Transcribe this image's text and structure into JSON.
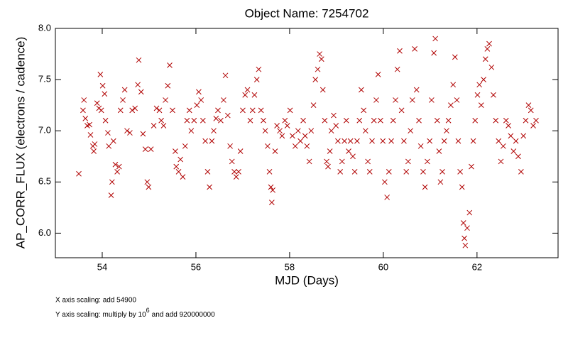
{
  "chart_data": {
    "type": "scatter",
    "title": "Object Name:  7254702",
    "xlabel": "MJD (Days)",
    "ylabel": "AP_CORR_FLUX (electrons / cadence)",
    "notes": [
      "X axis scaling: add 54900",
      "Y axis scaling: multiply by 10",
      "6",
      "and add 920000000"
    ],
    "color": "#b00000",
    "xlim": [
      53,
      63.73
    ],
    "ylim": [
      5.76,
      8.0
    ],
    "xticks": [
      54,
      56,
      58,
      60,
      62
    ],
    "yticks": [
      {
        "value": 6,
        "label": "6.0"
      },
      6.5,
      {
        "value": 7,
        "label": "7.0"
      },
      7.5,
      {
        "value": 8,
        "label": "8.0"
      }
    ],
    "x": [
      53.5,
      53.59,
      53.61,
      53.64,
      53.68,
      53.73,
      53.75,
      53.8,
      53.82,
      53.84,
      53.89,
      53.93,
      53.96,
      53.98,
      54.01,
      54.05,
      54.07,
      54.12,
      54.14,
      54.19,
      54.21,
      54.24,
      54.28,
      54.32,
      54.36,
      54.39,
      54.44,
      54.48,
      54.53,
      54.59,
      54.64,
      54.7,
      54.76,
      54.78,
      54.83,
      54.87,
      54.92,
      54.96,
      54.99,
      55.04,
      55.1,
      55.16,
      55.22,
      55.26,
      55.31,
      55.35,
      55.4,
      55.44,
      55.5,
      55.56,
      55.58,
      55.63,
      55.67,
      55.72,
      55.77,
      55.81,
      55.86,
      55.9,
      55.96,
      56.02,
      56.06,
      56.11,
      56.15,
      56.2,
      56.25,
      56.29,
      56.34,
      56.38,
      56.43,
      56.47,
      56.53,
      56.59,
      56.63,
      56.68,
      56.73,
      56.77,
      56.82,
      56.86,
      56.91,
      56.95,
      57.0,
      57.05,
      57.1,
      57.16,
      57.21,
      57.25,
      57.3,
      57.34,
      57.39,
      57.44,
      57.48,
      57.53,
      57.57,
      57.6,
      57.62,
      57.64,
      57.69,
      57.73,
      57.79,
      57.84,
      57.9,
      57.95,
      58.01,
      58.06,
      58.12,
      58.18,
      58.23,
      58.29,
      58.33,
      58.37,
      58.42,
      58.46,
      58.51,
      58.55,
      58.6,
      58.64,
      58.68,
      58.71,
      58.75,
      58.79,
      58.82,
      58.86,
      58.89,
      58.94,
      58.99,
      59.03,
      59.08,
      59.12,
      59.17,
      59.21,
      59.26,
      59.3,
      59.35,
      59.39,
      59.44,
      59.49,
      59.53,
      59.58,
      59.62,
      59.67,
      59.71,
      59.76,
      59.8,
      59.85,
      59.89,
      59.94,
      59.99,
      60.03,
      60.08,
      60.12,
      60.17,
      60.21,
      60.26,
      60.3,
      60.35,
      60.39,
      60.44,
      60.49,
      60.53,
      60.58,
      60.62,
      60.67,
      60.71,
      60.76,
      60.8,
      60.85,
      60.89,
      60.94,
      60.99,
      61.03,
      61.08,
      61.11,
      61.15,
      61.19,
      61.22,
      61.26,
      61.3,
      61.35,
      61.39,
      61.44,
      61.49,
      61.53,
      61.57,
      61.6,
      61.64,
      61.68,
      61.71,
      61.73,
      61.75,
      61.79,
      61.84,
      61.88,
      61.92,
      61.96,
      62.01,
      62.05,
      62.09,
      62.14,
      62.18,
      62.22,
      62.26,
      62.31,
      62.35,
      62.4,
      62.46,
      62.51,
      62.56,
      62.62,
      62.67,
      62.72,
      62.78,
      62.83,
      62.88,
      62.94,
      62.99,
      63.04,
      63.1,
      63.15,
      63.2,
      63.26
    ],
    "values": [
      6.58,
      7.2,
      7.3,
      7.12,
      7.05,
      7.06,
      6.96,
      6.85,
      6.8,
      6.87,
      7.27,
      7.22,
      7.55,
      7.2,
      7.44,
      7.36,
      7.1,
      6.98,
      6.85,
      6.37,
      6.5,
      6.9,
      6.67,
      6.6,
      6.65,
      7.2,
      7.3,
      7.4,
      7.0,
      6.98,
      7.2,
      7.22,
      7.45,
      7.69,
      7.38,
      6.97,
      6.82,
      6.5,
      6.45,
      6.82,
      7.05,
      7.22,
      7.2,
      7.1,
      7.05,
      7.3,
      7.44,
      7.64,
      7.2,
      6.8,
      6.65,
      6.6,
      6.72,
      6.55,
      6.85,
      7.1,
      7.2,
      7.0,
      7.1,
      7.25,
      7.38,
      7.3,
      7.1,
      6.9,
      6.6,
      6.45,
      6.9,
      7.0,
      7.12,
      7.2,
      7.1,
      7.3,
      7.54,
      7.15,
      6.85,
      6.7,
      6.6,
      6.55,
      6.6,
      6.8,
      7.2,
      7.35,
      7.4,
      7.1,
      7.2,
      7.35,
      7.5,
      7.6,
      7.2,
      7.1,
      7.0,
      6.85,
      6.6,
      6.45,
      6.3,
      6.42,
      6.8,
      7.05,
      7.0,
      6.95,
      7.1,
      7.05,
      7.2,
      6.95,
      6.85,
      7.0,
      6.9,
      7.1,
      6.95,
      6.85,
      6.7,
      7.0,
      7.25,
      7.5,
      7.6,
      7.75,
      7.7,
      7.4,
      7.1,
      6.7,
      6.65,
      6.8,
      7.0,
      7.15,
      7.05,
      6.9,
      6.6,
      6.7,
      6.9,
      7.1,
      6.8,
      6.9,
      6.75,
      6.6,
      6.9,
      7.1,
      7.4,
      7.2,
      7.0,
      6.7,
      6.6,
      6.9,
      7.1,
      7.3,
      7.55,
      7.1,
      6.9,
      6.5,
      6.35,
      6.6,
      6.9,
      7.1,
      7.3,
      7.6,
      7.78,
      7.2,
      6.9,
      6.6,
      6.7,
      7.0,
      7.3,
      7.8,
      7.4,
      7.1,
      6.85,
      6.6,
      6.45,
      6.7,
      6.9,
      7.3,
      7.76,
      7.9,
      7.1,
      6.8,
      6.5,
      6.6,
      6.9,
      7.0,
      7.1,
      7.25,
      7.45,
      7.72,
      7.3,
      6.9,
      6.6,
      6.45,
      6.1,
      5.95,
      5.88,
      6.05,
      6.2,
      6.65,
      6.9,
      7.1,
      7.35,
      7.45,
      7.25,
      7.5,
      7.7,
      7.8,
      7.85,
      7.62,
      7.35,
      7.1,
      6.9,
      6.7,
      6.85,
      7.1,
      7.05,
      6.95,
      6.8,
      6.9,
      6.75,
      6.6,
      6.95,
      7.1,
      7.25,
      7.2,
      7.05,
      7.1
    ]
  }
}
